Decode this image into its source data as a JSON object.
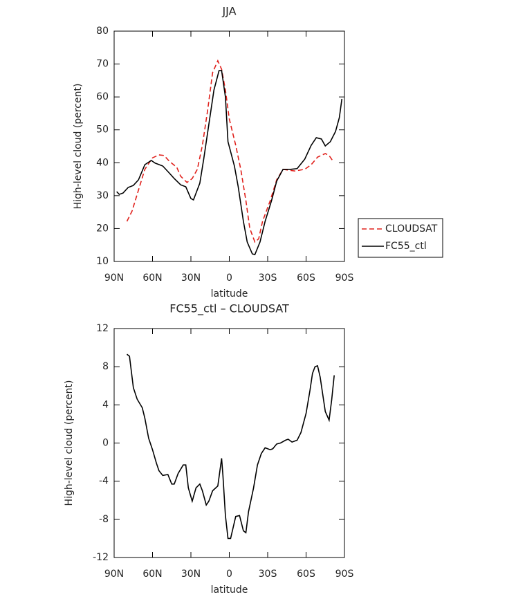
{
  "chart_data": [
    {
      "type": "line",
      "title": "JJA",
      "xlabel": "latitude",
      "ylabel": "High-level cloud (percent)",
      "xlim": [
        90,
        -90
      ],
      "xticks": [
        {
          "value": 90,
          "label": "90N"
        },
        {
          "value": 60,
          "label": "60N"
        },
        {
          "value": 30,
          "label": "30N"
        },
        0,
        {
          "value": -30,
          "label": "30S"
        },
        {
          "value": -60,
          "label": "60S"
        },
        {
          "value": -90,
          "label": "90S"
        }
      ],
      "ylim": [
        10,
        80
      ],
      "yticks": [
        10,
        20,
        30,
        40,
        50,
        60,
        70,
        80
      ],
      "legend": "right",
      "series": [
        {
          "name": "CLOUDSAT",
          "color": "#e0201b",
          "linestyle": "dashed",
          "x": [
            80,
            76,
            71,
            66,
            60,
            55,
            51,
            47,
            41,
            38,
            33,
            29,
            25,
            21,
            17,
            13,
            9,
            6,
            3,
            0,
            -5,
            -9,
            -13,
            -16,
            -20,
            -23,
            -26,
            -32,
            -37,
            -42,
            -51,
            -59,
            -64,
            -69,
            -75,
            -78,
            -81
          ],
          "values": [
            22.2,
            25.3,
            31.7,
            38,
            41.5,
            42.4,
            42.2,
            40.5,
            38.6,
            35.9,
            34,
            35.2,
            38,
            45.3,
            55.8,
            67.4,
            71,
            68.4,
            62.1,
            53.3,
            45.3,
            38,
            28.5,
            20.1,
            15.9,
            16.9,
            22.2,
            28.5,
            34.8,
            38,
            37.5,
            38,
            39.4,
            41.7,
            42.8,
            42.2,
            40.5
          ]
        },
        {
          "name": "FC55_ctl",
          "color": "#000000",
          "linestyle": "solid",
          "x": [
            88,
            86,
            83,
            79,
            75,
            71,
            66,
            61,
            58,
            52,
            47,
            43,
            38,
            34,
            30,
            28,
            23,
            20,
            16,
            12,
            8,
            6,
            3,
            1,
            -4,
            -7,
            -11,
            -14,
            -18,
            -20,
            -24,
            -28,
            -33,
            -37,
            -42,
            -48,
            -53,
            -59,
            -64,
            -68,
            -72,
            -75,
            -79,
            -83,
            -86,
            -88
          ],
          "values": [
            31.2,
            30.4,
            30.8,
            32.5,
            33.1,
            34.8,
            39.4,
            40.7,
            39.9,
            39,
            36.9,
            35.2,
            33.3,
            32.7,
            29.1,
            28.7,
            33.8,
            41.1,
            51.6,
            62.1,
            68,
            68,
            60,
            46.4,
            39,
            32.7,
            22.2,
            15.9,
            12.3,
            12.1,
            15.9,
            22.2,
            28.5,
            34.4,
            38,
            38,
            38.2,
            41.1,
            45.3,
            47.6,
            47.2,
            45.1,
            46.4,
            49.5,
            53.7,
            59.4
          ]
        }
      ]
    },
    {
      "type": "line",
      "title": "FC55_ctl – CLOUDSAT",
      "xlabel": "latitude",
      "ylabel": "High-level cloud (percent)",
      "xlim": [
        90,
        -90
      ],
      "xticks": [
        {
          "value": 90,
          "label": "90N"
        },
        {
          "value": 60,
          "label": "60N"
        },
        {
          "value": 30,
          "label": "30N"
        },
        0,
        {
          "value": -30,
          "label": "30S"
        },
        {
          "value": -60,
          "label": "60S"
        },
        {
          "value": -90,
          "label": "90S"
        }
      ],
      "ylim": [
        -12,
        12
      ],
      "yticks": [
        -12,
        -8,
        -4,
        0,
        4,
        8,
        12
      ],
      "series": [
        {
          "color": "#000000",
          "linestyle": "solid",
          "x": [
            80,
            78,
            75,
            72,
            68,
            66,
            63,
            60,
            57,
            55,
            52,
            48,
            45,
            43,
            40,
            36,
            34,
            32,
            29,
            26,
            23,
            21,
            18,
            16,
            13,
            9,
            6,
            5,
            3,
            1,
            -1,
            -5,
            -8,
            -11,
            -13,
            -15,
            -19,
            -22,
            -25,
            -28,
            -32,
            -34,
            -37,
            -40,
            -44,
            -46,
            -49,
            -53,
            -56,
            -60,
            -63,
            -65,
            -67,
            -69,
            -71,
            -73,
            -75,
            -78,
            -80,
            -82
          ],
          "values": [
            9.3,
            9.1,
            5.8,
            4.6,
            3.7,
            2.6,
            0.5,
            -0.7,
            -2.1,
            -2.9,
            -3.4,
            -3.3,
            -4.3,
            -4.3,
            -3.2,
            -2.3,
            -2.3,
            -4.7,
            -6.1,
            -4.7,
            -4.3,
            -5,
            -6.5,
            -6.1,
            -5,
            -4.5,
            -1.6,
            -3.4,
            -7.6,
            -10,
            -10,
            -7.7,
            -7.6,
            -9.2,
            -9.4,
            -7.2,
            -4.7,
            -2.3,
            -1.1,
            -0.5,
            -0.7,
            -0.6,
            -0.1,
            0,
            0.3,
            0.4,
            0.1,
            0.3,
            1.1,
            3.1,
            5.5,
            7.3,
            8,
            8.1,
            6.9,
            5.1,
            3.3,
            2.4,
            4.5,
            7.1
          ]
        }
      ]
    }
  ]
}
